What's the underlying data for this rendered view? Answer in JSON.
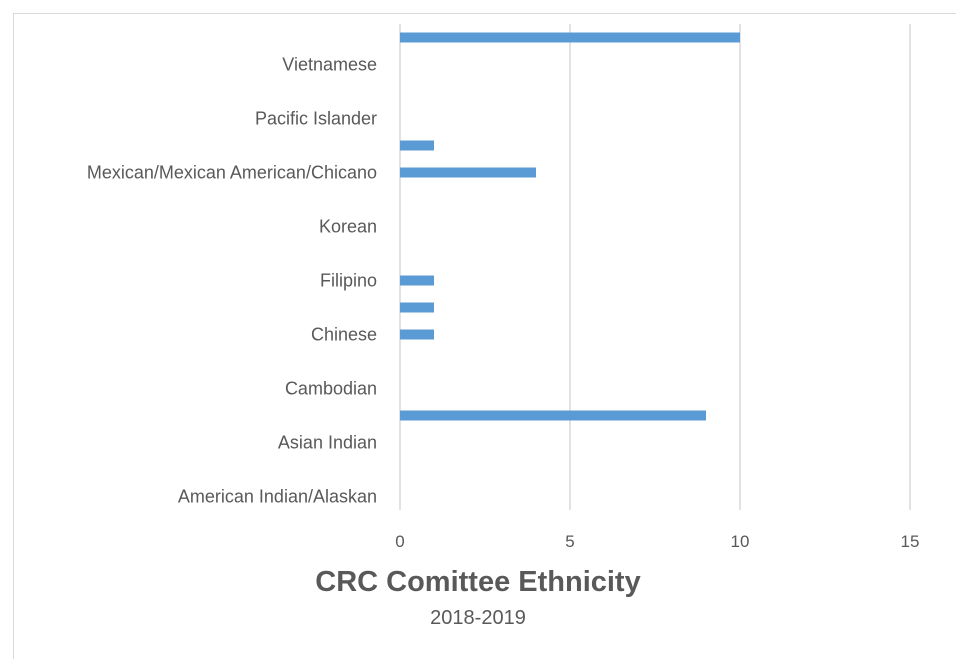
{
  "chart_data": {
    "type": "bar",
    "orientation": "horizontal",
    "title": "CRC Comittee Ethnicity",
    "subtitle": "2018-2019",
    "xlabel": "",
    "ylabel": "",
    "xlim": [
      0,
      15
    ],
    "x_ticks": [
      0,
      5,
      10,
      15
    ],
    "grid": true,
    "legend": "none",
    "bar_color": "#5b9bd5",
    "categories": [
      "American Indian/Alaskan",
      "",
      "Asian Indian",
      "",
      "Cambodian",
      "",
      "Chinese",
      "",
      "Filipino",
      "",
      "Korean",
      "",
      "Mexican/Mexican American/Chicano",
      "",
      "Pacific Islander",
      "",
      "Vietnamese",
      ""
    ],
    "values": [
      0,
      0,
      0,
      9,
      0,
      0,
      1,
      1,
      1,
      0,
      0,
      0,
      4,
      1,
      0,
      0,
      0,
      10
    ]
  }
}
